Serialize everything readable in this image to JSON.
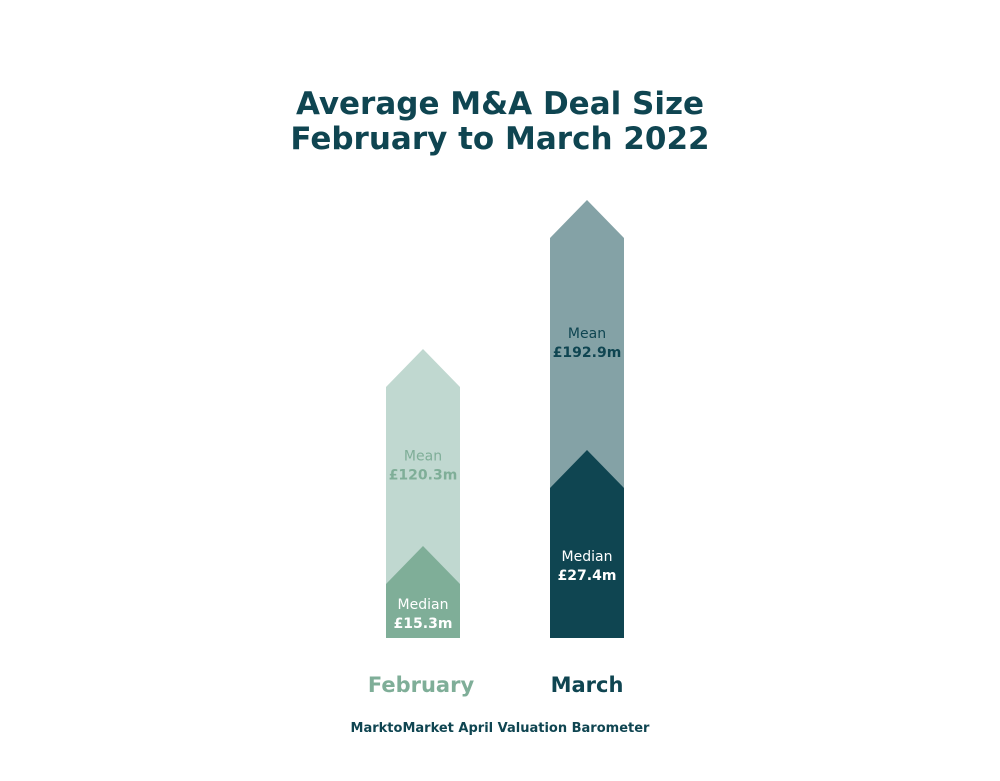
{
  "title_line1": "Average M&A Deal Size",
  "title_line2": "February to March 2022",
  "source": "MarktoMarket April Valuation Barometer",
  "colors": {
    "title": "#0f4551",
    "feb_mean_fill": "#c0d8d0",
    "feb_median_fill": "#7fae98",
    "mar_mean_fill": "#84a2a6",
    "mar_median_fill": "#0f4551",
    "feb_mean_text": "#7fae98",
    "feb_median_text": "#ffffff",
    "mar_mean_text": "#0f4551",
    "mar_median_text": "#ffffff",
    "feb_label": "#7fae98",
    "mar_label": "#0f4551"
  },
  "chart_data": {
    "type": "bar",
    "categories": [
      "February",
      "March"
    ],
    "series": [
      {
        "name": "Mean",
        "values": [
          120.3,
          192.9
        ]
      },
      {
        "name": "Median",
        "values": [
          15.3,
          27.4
        ]
      }
    ],
    "unit": "£m",
    "labels": [
      {
        "month": "February",
        "mean_label": "Mean",
        "mean_value": "£120.3m",
        "median_label": "Median",
        "median_value": "£15.3m"
      },
      {
        "month": "March",
        "mean_label": "Mean",
        "mean_value": "£192.9m",
        "median_label": "Median",
        "median_value": "£27.4m"
      }
    ]
  }
}
